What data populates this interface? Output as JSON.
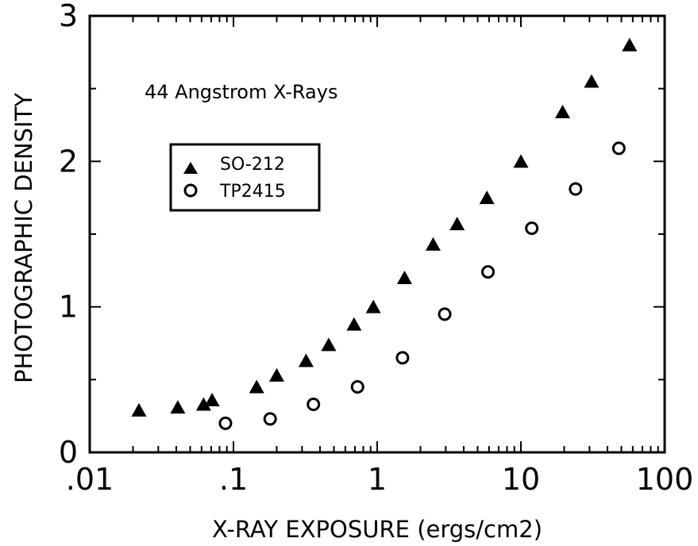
{
  "chart_data": {
    "type": "scatter",
    "title": "",
    "xlabel": "X-RAY EXPOSURE (ergs/cm2)",
    "ylabel": "PHOTOGRAPHIC DENSITY",
    "x_scale": "log",
    "xlim": [
      0.01,
      100
    ],
    "ylim": [
      0,
      3
    ],
    "x_ticks": [
      ".01",
      ".1",
      "1",
      "10",
      "100"
    ],
    "y_ticks": [
      "0",
      "1",
      "2",
      "3"
    ],
    "grid": false,
    "legend_position": "upper-left",
    "annotations": [
      "44 Angstrom X-Rays"
    ],
    "series": [
      {
        "name": "SO-212",
        "marker": "filled-triangle",
        "color": "#000000",
        "points": [
          [
            0.022,
            0.29
          ],
          [
            0.041,
            0.31
          ],
          [
            0.062,
            0.33
          ],
          [
            0.071,
            0.36
          ],
          [
            0.145,
            0.45
          ],
          [
            0.2,
            0.53
          ],
          [
            0.32,
            0.63
          ],
          [
            0.46,
            0.74
          ],
          [
            0.69,
            0.88
          ],
          [
            0.94,
            1.0
          ],
          [
            1.55,
            1.2
          ],
          [
            2.45,
            1.43
          ],
          [
            3.6,
            1.57
          ],
          [
            5.8,
            1.75
          ],
          [
            10,
            2.0
          ],
          [
            19.5,
            2.34
          ],
          [
            31,
            2.55
          ],
          [
            57,
            2.8
          ]
        ]
      },
      {
        "name": "TP2415",
        "marker": "open-circle",
        "color": "#000000",
        "points": [
          [
            0.088,
            0.2
          ],
          [
            0.18,
            0.23
          ],
          [
            0.36,
            0.33
          ],
          [
            0.73,
            0.45
          ],
          [
            1.5,
            0.65
          ],
          [
            2.95,
            0.95
          ],
          [
            5.9,
            1.24
          ],
          [
            11.9,
            1.54
          ],
          [
            24,
            1.81
          ],
          [
            48,
            2.09
          ]
        ]
      }
    ]
  }
}
